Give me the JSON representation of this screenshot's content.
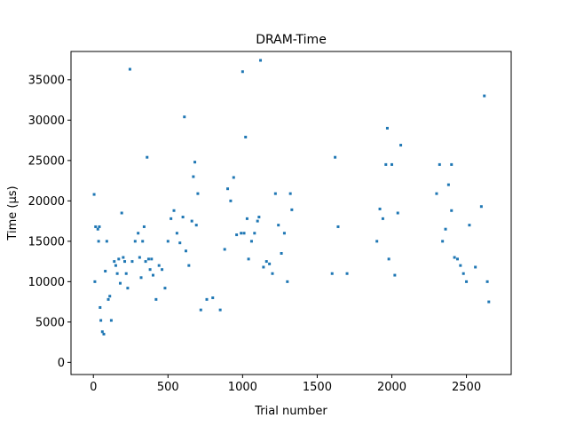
{
  "chart_data": {
    "type": "scatter",
    "title": "DRAM-Time",
    "xlabel": "Trial number",
    "ylabel": "Time (µs)",
    "xlim": [
      -150,
      2800
    ],
    "ylim": [
      -1500,
      38500
    ],
    "xticks": [
      0,
      500,
      1000,
      1500,
      2000,
      2500
    ],
    "yticks": [
      0,
      5000,
      10000,
      15000,
      20000,
      25000,
      30000,
      35000
    ],
    "grid": false,
    "marker_color": "#1f77b4",
    "series": [
      {
        "points": [
          [
            5,
            20800
          ],
          [
            10,
            10000
          ],
          [
            15,
            16800
          ],
          [
            30,
            16500
          ],
          [
            35,
            15000
          ],
          [
            40,
            16800
          ],
          [
            45,
            6800
          ],
          [
            50,
            5200
          ],
          [
            60,
            3800
          ],
          [
            70,
            3500
          ],
          [
            80,
            11300
          ],
          [
            90,
            15000
          ],
          [
            100,
            7800
          ],
          [
            110,
            8200
          ],
          [
            120,
            5200
          ],
          [
            140,
            12500
          ],
          [
            150,
            12000
          ],
          [
            160,
            11000
          ],
          [
            170,
            12800
          ],
          [
            180,
            9800
          ],
          [
            190,
            18500
          ],
          [
            200,
            13000
          ],
          [
            210,
            12500
          ],
          [
            220,
            11000
          ],
          [
            230,
            9200
          ],
          [
            245,
            36300
          ],
          [
            260,
            12500
          ],
          [
            280,
            15000
          ],
          [
            300,
            16000
          ],
          [
            310,
            13000
          ],
          [
            320,
            10500
          ],
          [
            330,
            15000
          ],
          [
            340,
            16800
          ],
          [
            350,
            12500
          ],
          [
            360,
            25400
          ],
          [
            370,
            12800
          ],
          [
            380,
            11500
          ],
          [
            390,
            12800
          ],
          [
            400,
            10800
          ],
          [
            420,
            7800
          ],
          [
            440,
            12000
          ],
          [
            460,
            11500
          ],
          [
            480,
            9200
          ],
          [
            500,
            15000
          ],
          [
            520,
            17800
          ],
          [
            540,
            18800
          ],
          [
            560,
            16000
          ],
          [
            580,
            14800
          ],
          [
            600,
            18000
          ],
          [
            610,
            30400
          ],
          [
            620,
            13800
          ],
          [
            640,
            12000
          ],
          [
            660,
            17500
          ],
          [
            670,
            23000
          ],
          [
            680,
            24800
          ],
          [
            690,
            17000
          ],
          [
            700,
            20900
          ],
          [
            720,
            6500
          ],
          [
            760,
            7800
          ],
          [
            800,
            8000
          ],
          [
            850,
            6500
          ],
          [
            880,
            14000
          ],
          [
            900,
            21500
          ],
          [
            920,
            20000
          ],
          [
            940,
            22900
          ],
          [
            960,
            15800
          ],
          [
            990,
            16000
          ],
          [
            1000,
            36000
          ],
          [
            1010,
            16000
          ],
          [
            1020,
            27900
          ],
          [
            1030,
            17800
          ],
          [
            1040,
            12800
          ],
          [
            1060,
            15000
          ],
          [
            1080,
            16000
          ],
          [
            1100,
            17500
          ],
          [
            1110,
            18000
          ],
          [
            1120,
            37400
          ],
          [
            1140,
            11800
          ],
          [
            1160,
            12500
          ],
          [
            1180,
            12200
          ],
          [
            1200,
            11000
          ],
          [
            1220,
            20900
          ],
          [
            1240,
            17000
          ],
          [
            1260,
            13500
          ],
          [
            1280,
            16000
          ],
          [
            1300,
            10000
          ],
          [
            1320,
            20900
          ],
          [
            1330,
            18900
          ],
          [
            1600,
            11000
          ],
          [
            1620,
            25400
          ],
          [
            1640,
            16800
          ],
          [
            1700,
            11000
          ],
          [
            1900,
            15000
          ],
          [
            1920,
            19000
          ],
          [
            1940,
            17800
          ],
          [
            1960,
            24500
          ],
          [
            1970,
            29000
          ],
          [
            1980,
            12800
          ],
          [
            2000,
            24500
          ],
          [
            2020,
            10800
          ],
          [
            2040,
            18500
          ],
          [
            2060,
            26900
          ],
          [
            2300,
            20900
          ],
          [
            2320,
            24500
          ],
          [
            2340,
            15000
          ],
          [
            2360,
            16500
          ],
          [
            2380,
            22000
          ],
          [
            2400,
            24500
          ],
          [
            2400,
            18800
          ],
          [
            2420,
            13000
          ],
          [
            2440,
            12800
          ],
          [
            2460,
            12000
          ],
          [
            2480,
            11000
          ],
          [
            2500,
            10000
          ],
          [
            2520,
            17000
          ],
          [
            2560,
            11800
          ],
          [
            2600,
            19300
          ],
          [
            2620,
            33000
          ],
          [
            2640,
            10000
          ],
          [
            2650,
            7500
          ]
        ]
      }
    ]
  }
}
